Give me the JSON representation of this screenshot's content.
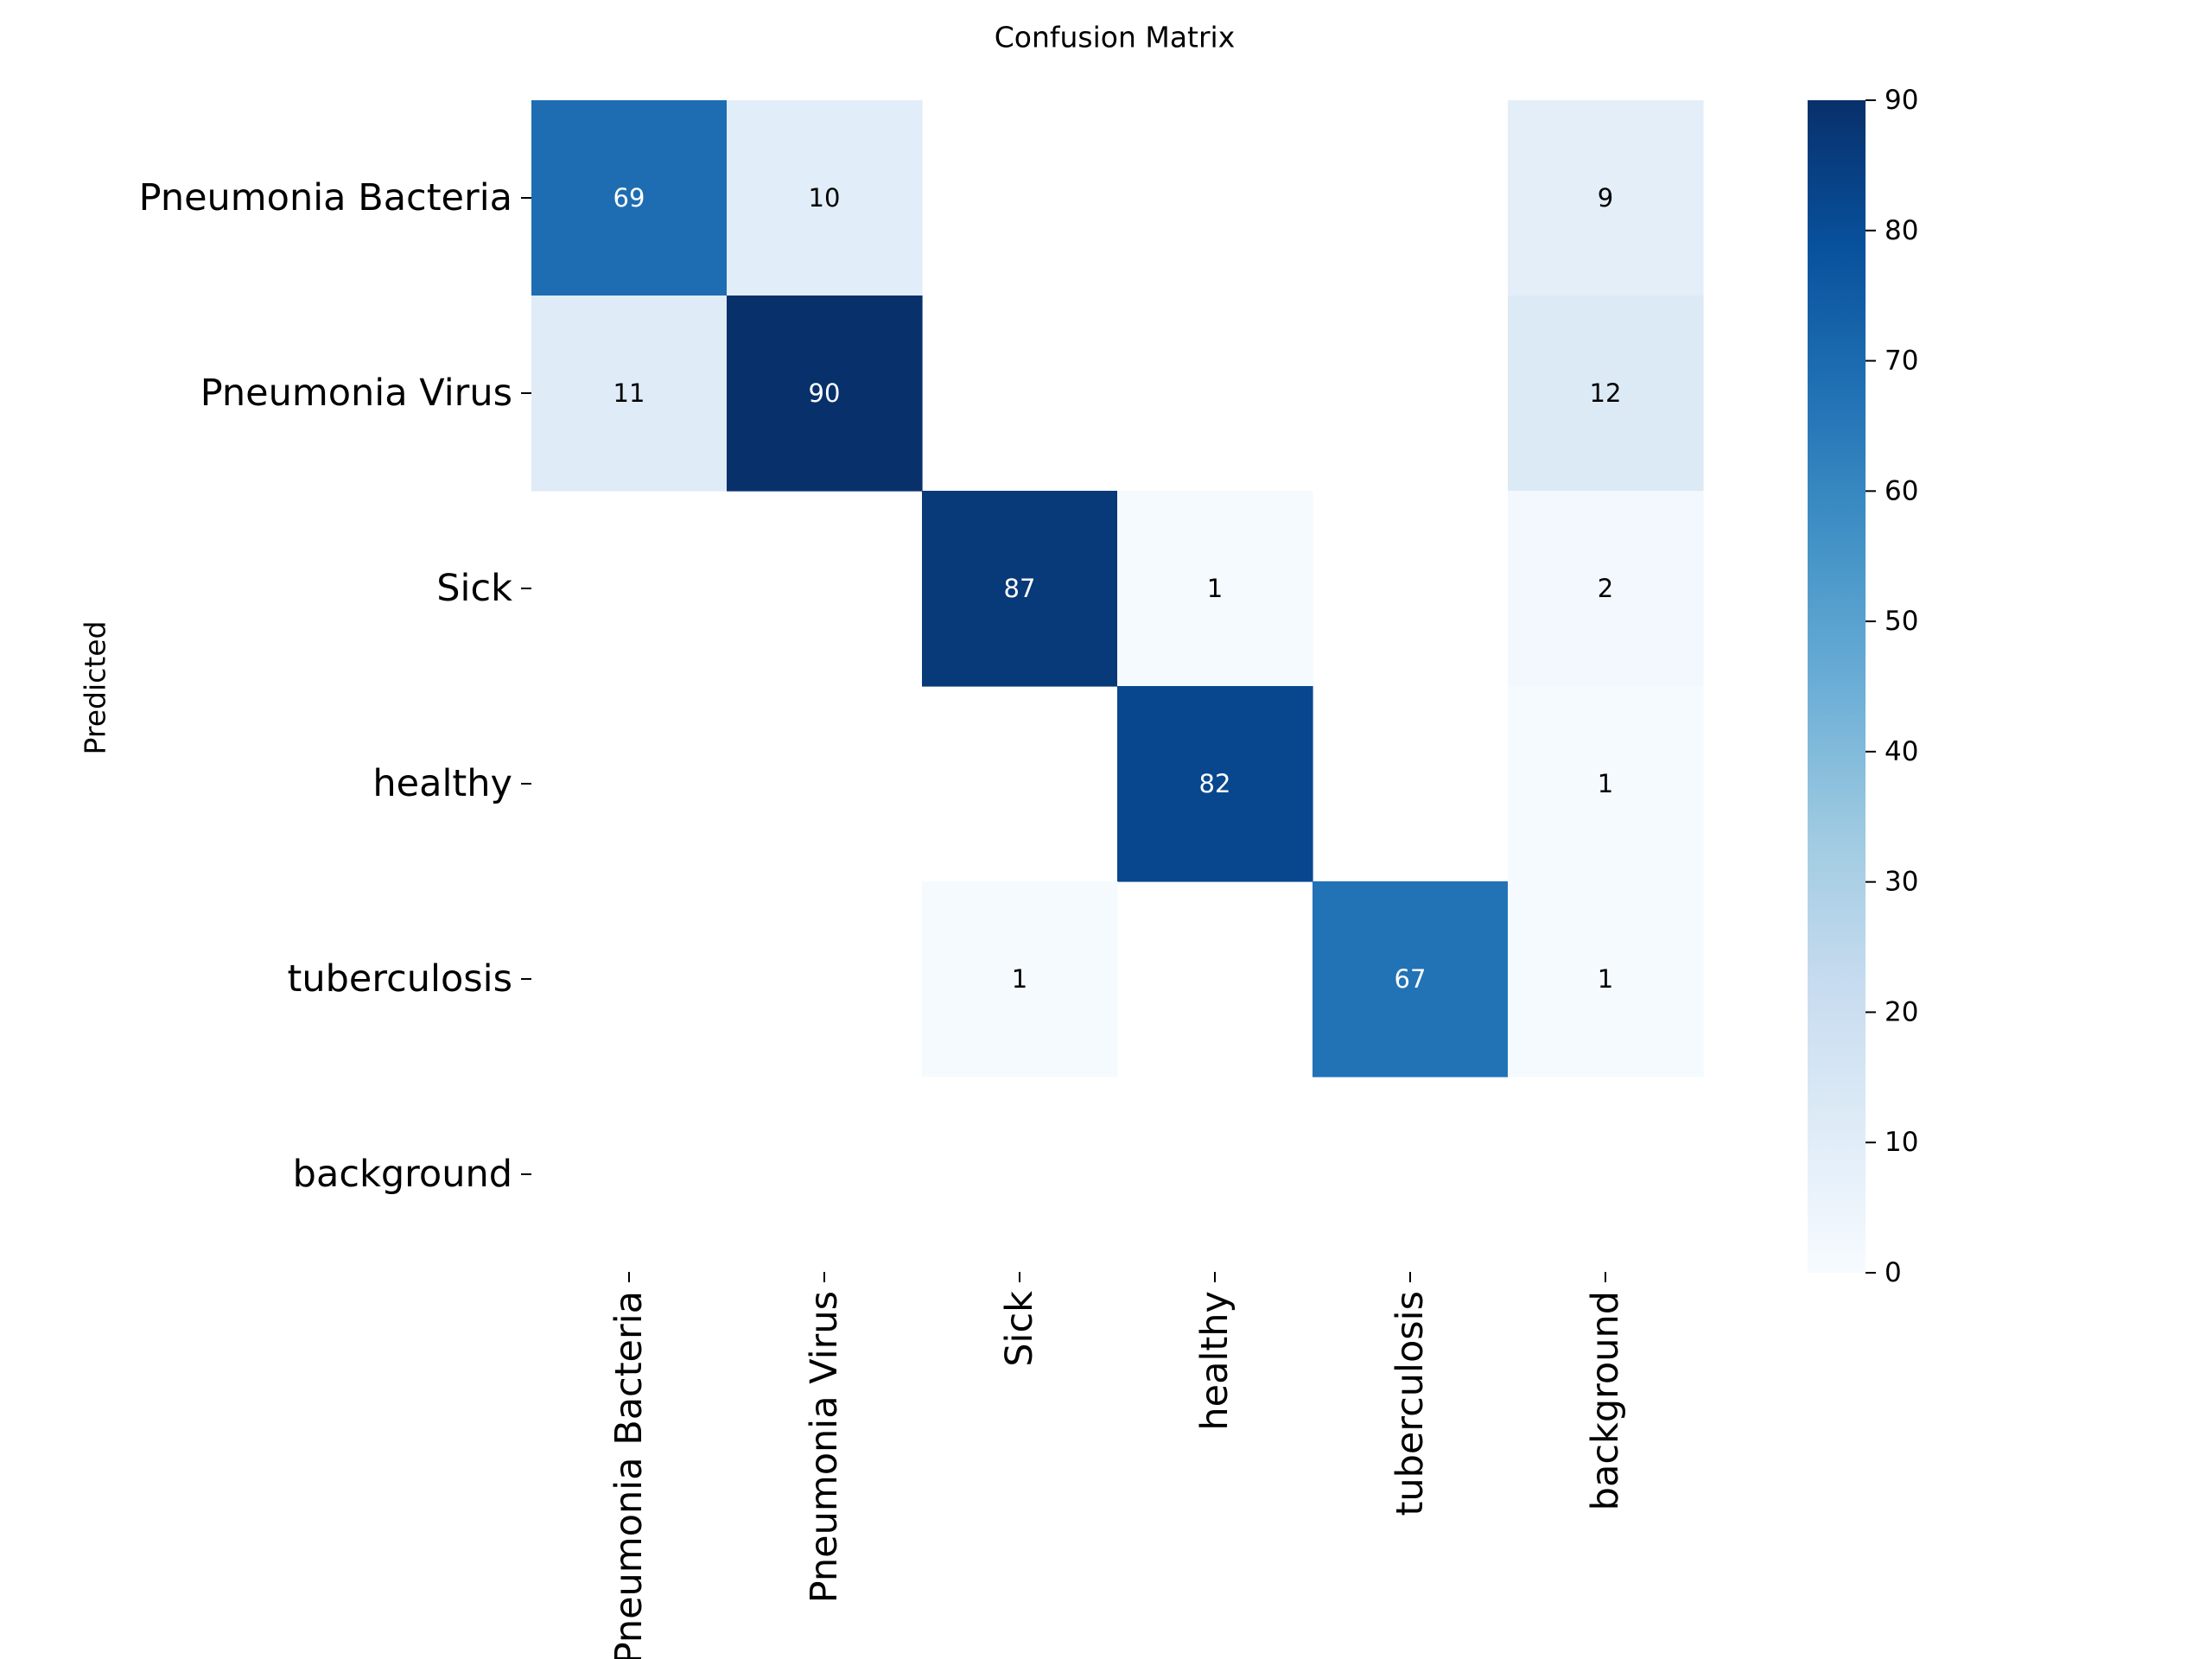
{
  "chart_data": {
    "type": "heatmap",
    "title": "Confusion Matrix",
    "xlabel": "",
    "ylabel": "Predicted",
    "x_categories": [
      "Pneumonia Bacteria",
      "Pneumonia Virus",
      "Sick",
      "healthy",
      "tuberculosis",
      "background"
    ],
    "y_categories": [
      "Pneumonia Bacteria",
      "Pneumonia Virus",
      "Sick",
      "healthy",
      "tuberculosis",
      "background"
    ],
    "values": [
      [
        69,
        10,
        null,
        null,
        null,
        9
      ],
      [
        11,
        90,
        null,
        null,
        null,
        12
      ],
      [
        null,
        null,
        87,
        1,
        null,
        2
      ],
      [
        null,
        null,
        null,
        82,
        null,
        1
      ],
      [
        null,
        null,
        1,
        null,
        67,
        1
      ],
      [
        null,
        null,
        null,
        null,
        null,
        null
      ]
    ],
    "colormap": "Blues",
    "color_range": [
      0,
      90
    ],
    "colorbar_ticks": [
      0,
      10,
      20,
      30,
      40,
      50,
      60,
      70,
      80,
      90
    ]
  }
}
